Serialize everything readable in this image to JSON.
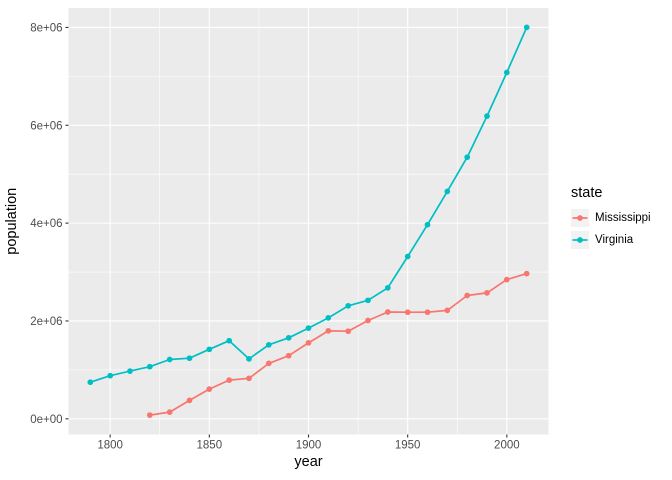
{
  "figure": {
    "background": "#FFFFFF"
  },
  "chart_data": {
    "type": "line",
    "title": "",
    "xlabel": "year",
    "ylabel": "population",
    "xlim": [
      1779,
      2021
    ],
    "ylim": [
      -320831,
      8397303
    ],
    "x_ticks": [
      {
        "value": 1800,
        "label": "1800"
      },
      {
        "value": 1850,
        "label": "1850"
      },
      {
        "value": 1900,
        "label": "1900"
      },
      {
        "value": 1950,
        "label": "1950"
      },
      {
        "value": 2000,
        "label": "2000"
      }
    ],
    "y_ticks": [
      {
        "value": 0,
        "label": "0e+00"
      },
      {
        "value": 2000000,
        "label": "2e+06"
      },
      {
        "value": 4000000,
        "label": "4e+06"
      },
      {
        "value": 6000000,
        "label": "6e+06"
      },
      {
        "value": 8000000,
        "label": "8e+06"
      }
    ],
    "grid": {
      "major": true,
      "minor": true
    },
    "legend": {
      "title": "state",
      "position": "right",
      "entries": [
        "Mississippi",
        "Virginia"
      ]
    },
    "theme": {
      "panel_bg": "#EBEBEB",
      "grid_color": "#FFFFFF",
      "tick_mark_color": "#333333",
      "tick_label_color": "#4D4D4D",
      "axis_title_color": "#000000",
      "legend_key_bg": "#F2F2F2"
    },
    "series": [
      {
        "name": "Mississippi",
        "color": "#F8766D",
        "x": [
          1820,
          1830,
          1840,
          1850,
          1860,
          1870,
          1880,
          1890,
          1900,
          1910,
          1920,
          1930,
          1940,
          1950,
          1960,
          1970,
          1980,
          1990,
          2000,
          2010
        ],
        "y": [
          75448,
          136621,
          375651,
          606526,
          791305,
          827922,
          1131597,
          1289600,
          1551270,
          1797114,
          1790618,
          2009821,
          2183796,
          2178914,
          2178141,
          2216912,
          2520638,
          2573216,
          2844658,
          2967297
        ]
      },
      {
        "name": "Virginia",
        "color": "#00BFC4",
        "x": [
          1790,
          1800,
          1810,
          1820,
          1830,
          1840,
          1850,
          1860,
          1870,
          1880,
          1890,
          1900,
          1910,
          1920,
          1930,
          1940,
          1950,
          1960,
          1970,
          1980,
          1990,
          2000,
          2010
        ],
        "y": [
          747610,
          880200,
          974600,
          1065366,
          1211405,
          1239797,
          1421661,
          1596318,
          1225163,
          1512565,
          1655980,
          1854184,
          2061612,
          2309187,
          2421851,
          2677773,
          3318680,
          3966949,
          4648494,
          5346818,
          6187358,
          7078515,
          8001024
        ]
      }
    ]
  }
}
